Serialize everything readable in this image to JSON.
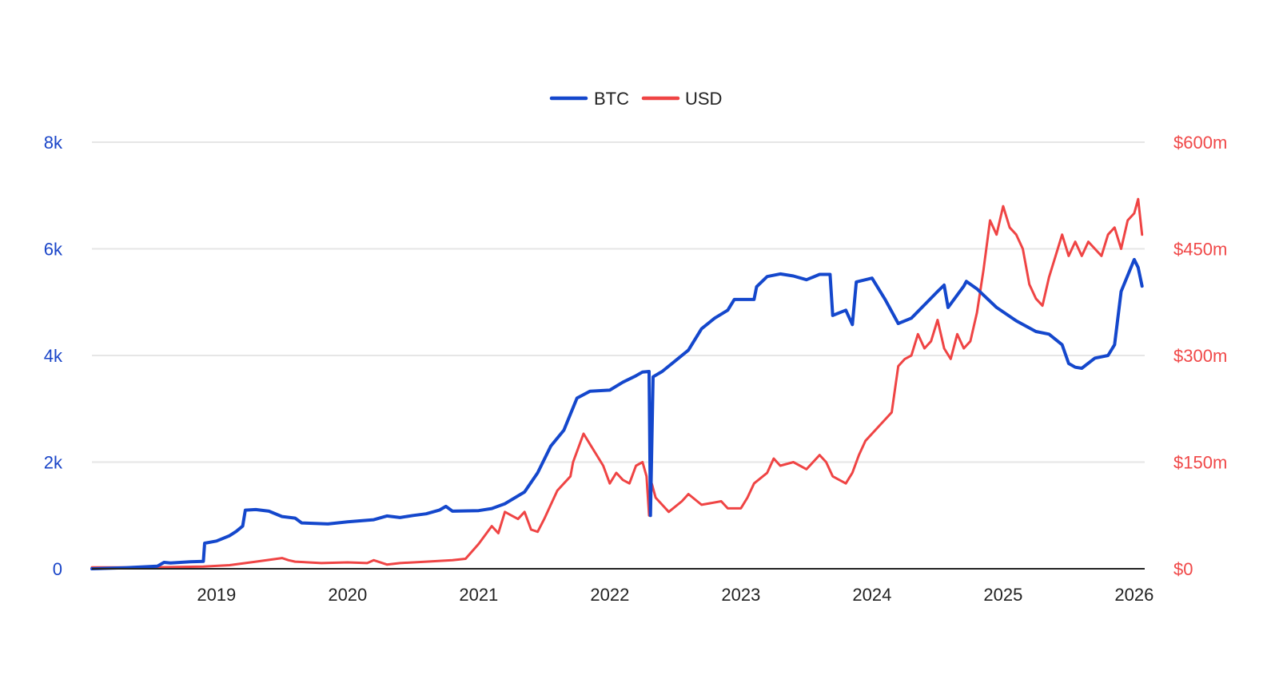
{
  "colors": {
    "btc": "#1447cc",
    "usd": "#ef4444",
    "grid": "#e6e6e6",
    "axis": "#222222"
  },
  "chart_data": {
    "type": "line",
    "title": "",
    "legend": {
      "position": "top-center",
      "entries": [
        "BTC",
        "USD"
      ]
    },
    "x_ticks": [
      "2019",
      "2020",
      "2021",
      "2022",
      "2023",
      "2024",
      "2025",
      "2026"
    ],
    "x_tick_years": [
      2019,
      2020,
      2021,
      2022,
      2023,
      2024,
      2025,
      2026
    ],
    "xlim": [
      2018.05,
      2026.08
    ],
    "left_axis": {
      "ticks": [
        "0",
        "2k",
        "4k",
        "6k",
        "8k"
      ],
      "tick_values": [
        0,
        2000,
        4000,
        6000,
        8000
      ],
      "ylim": [
        0,
        8000
      ]
    },
    "right_axis": {
      "ticks": [
        "$0",
        "$150m",
        "$300m",
        "$450m",
        "$600m"
      ],
      "tick_values": [
        0,
        150,
        300,
        450,
        600
      ],
      "ylim": [
        0,
        600
      ]
    },
    "grid": true,
    "series": [
      {
        "name": "BTC",
        "axis": "left",
        "points": [
          [
            2018.05,
            0
          ],
          [
            2018.3,
            20
          ],
          [
            2018.55,
            50
          ],
          [
            2018.6,
            120
          ],
          [
            2018.65,
            110
          ],
          [
            2018.8,
            130
          ],
          [
            2018.9,
            140
          ],
          [
            2018.91,
            480
          ],
          [
            2019.0,
            520
          ],
          [
            2019.1,
            620
          ],
          [
            2019.15,
            700
          ],
          [
            2019.2,
            800
          ],
          [
            2019.22,
            1100
          ],
          [
            2019.3,
            1110
          ],
          [
            2019.4,
            1080
          ],
          [
            2019.5,
            980
          ],
          [
            2019.6,
            950
          ],
          [
            2019.65,
            860
          ],
          [
            2019.85,
            840
          ],
          [
            2020.0,
            880
          ],
          [
            2020.2,
            920
          ],
          [
            2020.3,
            990
          ],
          [
            2020.4,
            960
          ],
          [
            2020.5,
            1000
          ],
          [
            2020.6,
            1030
          ],
          [
            2020.7,
            1100
          ],
          [
            2020.75,
            1170
          ],
          [
            2020.8,
            1080
          ],
          [
            2021.0,
            1090
          ],
          [
            2021.1,
            1130
          ],
          [
            2021.2,
            1220
          ],
          [
            2021.35,
            1440
          ],
          [
            2021.45,
            1800
          ],
          [
            2021.55,
            2300
          ],
          [
            2021.65,
            2600
          ],
          [
            2021.7,
            2900
          ],
          [
            2021.75,
            3200
          ],
          [
            2021.85,
            3330
          ],
          [
            2022.0,
            3350
          ],
          [
            2022.1,
            3500
          ],
          [
            2022.2,
            3620
          ],
          [
            2022.25,
            3690
          ],
          [
            2022.3,
            3700
          ],
          [
            2022.31,
            1000
          ],
          [
            2022.33,
            3600
          ],
          [
            2022.4,
            3700
          ],
          [
            2022.5,
            3900
          ],
          [
            2022.6,
            4100
          ],
          [
            2022.7,
            4500
          ],
          [
            2022.8,
            4700
          ],
          [
            2022.9,
            4850
          ],
          [
            2022.95,
            5050
          ],
          [
            2023.05,
            5050
          ],
          [
            2023.1,
            5050
          ],
          [
            2023.12,
            5290
          ],
          [
            2023.2,
            5480
          ],
          [
            2023.3,
            5530
          ],
          [
            2023.4,
            5490
          ],
          [
            2023.5,
            5420
          ],
          [
            2023.6,
            5520
          ],
          [
            2023.68,
            5520
          ],
          [
            2023.7,
            4750
          ],
          [
            2023.8,
            4850
          ],
          [
            2023.85,
            4580
          ],
          [
            2023.88,
            5380
          ],
          [
            2024.0,
            5450
          ],
          [
            2024.1,
            5050
          ],
          [
            2024.2,
            4600
          ],
          [
            2024.3,
            4700
          ],
          [
            2024.4,
            4950
          ],
          [
            2024.5,
            5200
          ],
          [
            2024.55,
            5320
          ],
          [
            2024.58,
            4900
          ],
          [
            2024.7,
            5300
          ],
          [
            2024.72,
            5390
          ],
          [
            2024.8,
            5250
          ],
          [
            2024.95,
            4900
          ],
          [
            2025.1,
            4650
          ],
          [
            2025.25,
            4450
          ],
          [
            2025.35,
            4400
          ],
          [
            2025.45,
            4200
          ],
          [
            2025.5,
            3850
          ],
          [
            2025.55,
            3780
          ],
          [
            2025.6,
            3760
          ],
          [
            2025.7,
            3950
          ],
          [
            2025.8,
            4000
          ],
          [
            2025.85,
            4200
          ],
          [
            2025.9,
            5200
          ],
          [
            2025.95,
            5500
          ],
          [
            2026.0,
            5800
          ],
          [
            2026.03,
            5650
          ],
          [
            2026.06,
            5300
          ]
        ]
      },
      {
        "name": "USD",
        "axis": "right",
        "points": [
          [
            2018.05,
            2
          ],
          [
            2018.5,
            2
          ],
          [
            2018.9,
            3
          ],
          [
            2019.1,
            5
          ],
          [
            2019.3,
            10
          ],
          [
            2019.5,
            15
          ],
          [
            2019.55,
            12
          ],
          [
            2019.6,
            10
          ],
          [
            2019.8,
            8
          ],
          [
            2020.0,
            9
          ],
          [
            2020.15,
            8
          ],
          [
            2020.2,
            12
          ],
          [
            2020.3,
            6
          ],
          [
            2020.4,
            8
          ],
          [
            2020.6,
            10
          ],
          [
            2020.8,
            12
          ],
          [
            2020.9,
            14
          ],
          [
            2021.0,
            35
          ],
          [
            2021.1,
            60
          ],
          [
            2021.15,
            50
          ],
          [
            2021.2,
            80
          ],
          [
            2021.3,
            70
          ],
          [
            2021.35,
            80
          ],
          [
            2021.4,
            55
          ],
          [
            2021.45,
            52
          ],
          [
            2021.5,
            70
          ],
          [
            2021.55,
            90
          ],
          [
            2021.6,
            110
          ],
          [
            2021.65,
            120
          ],
          [
            2021.7,
            130
          ],
          [
            2021.72,
            150
          ],
          [
            2021.8,
            190
          ],
          [
            2021.85,
            175
          ],
          [
            2021.9,
            160
          ],
          [
            2021.95,
            145
          ],
          [
            2022.0,
            120
          ],
          [
            2022.05,
            135
          ],
          [
            2022.1,
            125
          ],
          [
            2022.15,
            120
          ],
          [
            2022.2,
            145
          ],
          [
            2022.25,
            150
          ],
          [
            2022.28,
            130
          ],
          [
            2022.3,
            75
          ],
          [
            2022.32,
            120
          ],
          [
            2022.35,
            100
          ],
          [
            2022.45,
            80
          ],
          [
            2022.55,
            95
          ],
          [
            2022.6,
            105
          ],
          [
            2022.7,
            90
          ],
          [
            2022.85,
            95
          ],
          [
            2022.9,
            85
          ],
          [
            2023.0,
            85
          ],
          [
            2023.05,
            100
          ],
          [
            2023.1,
            120
          ],
          [
            2023.2,
            135
          ],
          [
            2023.25,
            155
          ],
          [
            2023.3,
            145
          ],
          [
            2023.4,
            150
          ],
          [
            2023.5,
            140
          ],
          [
            2023.55,
            150
          ],
          [
            2023.6,
            160
          ],
          [
            2023.65,
            150
          ],
          [
            2023.7,
            130
          ],
          [
            2023.8,
            120
          ],
          [
            2023.85,
            135
          ],
          [
            2023.9,
            160
          ],
          [
            2023.95,
            180
          ],
          [
            2024.05,
            200
          ],
          [
            2024.1,
            210
          ],
          [
            2024.15,
            220
          ],
          [
            2024.2,
            285
          ],
          [
            2024.25,
            295
          ],
          [
            2024.3,
            300
          ],
          [
            2024.35,
            330
          ],
          [
            2024.4,
            310
          ],
          [
            2024.45,
            320
          ],
          [
            2024.5,
            350
          ],
          [
            2024.55,
            310
          ],
          [
            2024.6,
            295
          ],
          [
            2024.65,
            330
          ],
          [
            2024.7,
            310
          ],
          [
            2024.75,
            320
          ],
          [
            2024.8,
            360
          ],
          [
            2024.85,
            420
          ],
          [
            2024.9,
            490
          ],
          [
            2024.95,
            470
          ],
          [
            2025.0,
            510
          ],
          [
            2025.05,
            480
          ],
          [
            2025.1,
            470
          ],
          [
            2025.15,
            450
          ],
          [
            2025.2,
            400
          ],
          [
            2025.25,
            380
          ],
          [
            2025.3,
            370
          ],
          [
            2025.35,
            410
          ],
          [
            2025.4,
            440
          ],
          [
            2025.45,
            470
          ],
          [
            2025.5,
            440
          ],
          [
            2025.55,
            460
          ],
          [
            2025.6,
            440
          ],
          [
            2025.65,
            460
          ],
          [
            2025.7,
            450
          ],
          [
            2025.75,
            440
          ],
          [
            2025.8,
            470
          ],
          [
            2025.85,
            480
          ],
          [
            2025.9,
            450
          ],
          [
            2025.95,
            490
          ],
          [
            2026.0,
            500
          ],
          [
            2026.03,
            520
          ],
          [
            2026.06,
            470
          ]
        ]
      }
    ]
  }
}
